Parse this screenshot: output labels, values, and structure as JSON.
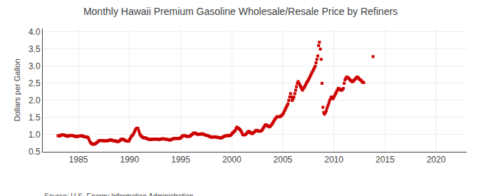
{
  "chart_data": {
    "type": "scatter",
    "title": "Monthly Hawaii Premium Gasoline Wholesale/Resale Price by Refiners",
    "y_label": "Dollars per Gallon",
    "annotations": [
      "Source: U.S. Energy Information Administration"
    ],
    "color": "#cc0000",
    "marker": "square",
    "grid": true,
    "xlim": [
      1981.5,
      2023
    ],
    "ylim": [
      0.5,
      4.1
    ],
    "xticks": [
      1985,
      1990,
      1995,
      2000,
      2005,
      2010,
      2015,
      2020
    ],
    "yticks": [
      0.5,
      {
        "value": 1.0,
        "label": "1.0"
      },
      1.5,
      {
        "value": 2.0,
        "label": "2.0"
      },
      2.5,
      {
        "value": 3.0,
        "label": "3.0"
      },
      3.5,
      {
        "value": 4.0,
        "label": "4.0"
      }
    ],
    "x": [
      1983.0,
      1983.08,
      1983.17,
      1983.25,
      1983.33,
      1983.42,
      1983.5,
      1983.58,
      1983.67,
      1983.75,
      1983.83,
      1983.92,
      1984.0,
      1984.08,
      1984.17,
      1984.25,
      1984.33,
      1984.42,
      1984.5,
      1984.58,
      1984.67,
      1984.75,
      1984.83,
      1984.92,
      1985.0,
      1985.08,
      1985.17,
      1985.25,
      1985.33,
      1985.42,
      1985.5,
      1985.58,
      1985.67,
      1985.75,
      1985.83,
      1985.92,
      1986.0,
      1986.08,
      1986.17,
      1986.25,
      1986.33,
      1986.42,
      1986.5,
      1986.58,
      1986.67,
      1986.75,
      1986.83,
      1986.92,
      1987.0,
      1987.08,
      1987.17,
      1987.25,
      1987.33,
      1987.42,
      1987.5,
      1987.58,
      1987.67,
      1987.75,
      1987.83,
      1987.92,
      1988.0,
      1988.08,
      1988.17,
      1988.25,
      1988.33,
      1988.42,
      1988.5,
      1988.58,
      1988.67,
      1988.75,
      1988.83,
      1988.92,
      1989.0,
      1989.08,
      1989.17,
      1989.25,
      1989.33,
      1989.42,
      1989.5,
      1989.58,
      1989.67,
      1989.75,
      1989.83,
      1989.92,
      1990.0,
      1990.08,
      1990.17,
      1990.25,
      1990.33,
      1990.42,
      1990.5,
      1990.58,
      1990.67,
      1990.75,
      1990.83,
      1990.92,
      1991.0,
      1991.08,
      1991.17,
      1991.25,
      1991.33,
      1991.42,
      1991.5,
      1991.58,
      1991.67,
      1991.75,
      1991.83,
      1991.92,
      1992.0,
      1992.08,
      1992.17,
      1992.25,
      1992.33,
      1992.42,
      1992.5,
      1992.58,
      1992.67,
      1992.75,
      1992.83,
      1992.92,
      1993.0,
      1993.08,
      1993.17,
      1993.25,
      1993.33,
      1993.42,
      1993.5,
      1993.58,
      1993.67,
      1993.75,
      1993.83,
      1993.92,
      1994.0,
      1994.08,
      1994.17,
      1994.25,
      1994.33,
      1994.42,
      1994.5,
      1994.58,
      1994.67,
      1994.75,
      1994.83,
      1994.92,
      1995.0,
      1995.08,
      1995.17,
      1995.25,
      1995.33,
      1995.42,
      1995.5,
      1995.58,
      1995.67,
      1995.75,
      1995.83,
      1995.92,
      1996.0,
      1996.08,
      1996.17,
      1996.25,
      1996.33,
      1996.42,
      1996.5,
      1996.58,
      1996.67,
      1996.75,
      1996.83,
      1996.92,
      1997.0,
      1997.08,
      1997.17,
      1997.25,
      1997.33,
      1997.42,
      1997.5,
      1997.58,
      1997.67,
      1997.75,
      1997.83,
      1997.92,
      1998.0,
      1998.08,
      1998.17,
      1998.25,
      1998.33,
      1998.42,
      1998.5,
      1998.58,
      1998.67,
      1998.75,
      1998.83,
      1998.92,
      1999.0,
      1999.08,
      1999.17,
      1999.25,
      1999.33,
      1999.42,
      1999.5,
      1999.58,
      1999.67,
      1999.75,
      1999.83,
      1999.92,
      2000.0,
      2000.08,
      2000.17,
      2000.25,
      2000.33,
      2000.42,
      2000.5,
      2000.58,
      2000.67,
      2000.75,
      2000.83,
      2000.92,
      2001.0,
      2001.08,
      2001.17,
      2001.25,
      2001.33,
      2001.42,
      2001.5,
      2001.58,
      2001.67,
      2001.75,
      2001.83,
      2001.92,
      2002.0,
      2002.08,
      2002.17,
      2002.25,
      2002.33,
      2002.42,
      2002.5,
      2002.58,
      2002.67,
      2002.75,
      2002.83,
      2002.92,
      2003.0,
      2003.08,
      2003.17,
      2003.25,
      2003.33,
      2003.42,
      2003.5,
      2003.58,
      2003.67,
      2003.75,
      2003.83,
      2003.92,
      2004.0,
      2004.08,
      2004.17,
      2004.25,
      2004.33,
      2004.42,
      2004.5,
      2004.58,
      2004.67,
      2004.75,
      2004.83,
      2004.92,
      2005.0,
      2005.08,
      2005.17,
      2005.25,
      2005.33,
      2005.42,
      2005.5,
      2005.58,
      2005.67,
      2005.75,
      2005.83,
      2005.92,
      2006.0,
      2006.08,
      2006.17,
      2006.25,
      2006.33,
      2006.42,
      2006.5,
      2006.58,
      2006.67,
      2006.75,
      2006.83,
      2006.92,
      2007.0,
      2007.08,
      2007.17,
      2007.25,
      2007.33,
      2007.42,
      2007.5,
      2007.58,
      2007.67,
      2007.75,
      2007.83,
      2007.92,
      2008.0,
      2008.08,
      2008.17,
      2008.25,
      2008.33,
      2008.42,
      2008.5,
      2008.58,
      2008.67,
      2008.75,
      2008.83,
      2008.92,
      2009.0,
      2009.08,
      2009.17,
      2009.25,
      2009.33,
      2009.42,
      2009.5,
      2009.58,
      2009.67,
      2009.75,
      2009.83,
      2009.92,
      2010.0,
      2010.08,
      2010.17,
      2010.25,
      2010.33,
      2010.42,
      2010.5,
      2010.58,
      2010.67,
      2010.75,
      2010.83,
      2010.92,
      2011.0,
      2011.08,
      2011.17,
      2011.25,
      2011.33,
      2011.42,
      2011.5,
      2011.58,
      2011.67,
      2011.75,
      2011.83,
      2011.92,
      2012.0,
      2012.08,
      2012.17,
      2012.25,
      2012.33,
      2012.42,
      2012.5,
      2012.58,
      2012.67,
      2012.75,
      2012.83,
      2012.92,
      2013.83
    ],
    "values": [
      0.97,
      0.97,
      0.96,
      0.98,
      0.99,
      1.0,
      1.0,
      0.99,
      0.98,
      0.97,
      0.96,
      0.95,
      0.97,
      0.97,
      0.97,
      0.98,
      0.98,
      0.97,
      0.97,
      0.96,
      0.95,
      0.95,
      0.94,
      0.95,
      0.96,
      0.96,
      0.96,
      0.97,
      0.97,
      0.96,
      0.95,
      0.94,
      0.94,
      0.93,
      0.93,
      0.92,
      0.88,
      0.82,
      0.77,
      0.75,
      0.73,
      0.72,
      0.72,
      0.73,
      0.74,
      0.76,
      0.78,
      0.8,
      0.82,
      0.83,
      0.83,
      0.83,
      0.83,
      0.82,
      0.82,
      0.82,
      0.82,
      0.82,
      0.82,
      0.83,
      0.84,
      0.84,
      0.85,
      0.84,
      0.83,
      0.82,
      0.82,
      0.82,
      0.81,
      0.8,
      0.8,
      0.8,
      0.82,
      0.84,
      0.86,
      0.87,
      0.87,
      0.86,
      0.84,
      0.83,
      0.82,
      0.81,
      0.81,
      0.81,
      0.86,
      0.9,
      0.95,
      0.97,
      1.0,
      1.05,
      1.1,
      1.15,
      1.18,
      1.19,
      1.18,
      1.1,
      1.02,
      0.98,
      0.95,
      0.93,
      0.91,
      0.91,
      0.91,
      0.9,
      0.89,
      0.88,
      0.87,
      0.86,
      0.86,
      0.86,
      0.86,
      0.87,
      0.87,
      0.87,
      0.87,
      0.87,
      0.87,
      0.87,
      0.86,
      0.86,
      0.87,
      0.87,
      0.88,
      0.88,
      0.88,
      0.87,
      0.87,
      0.87,
      0.86,
      0.86,
      0.85,
      0.84,
      0.85,
      0.86,
      0.87,
      0.88,
      0.89,
      0.89,
      0.89,
      0.89,
      0.89,
      0.89,
      0.89,
      0.89,
      0.91,
      0.93,
      0.96,
      0.97,
      0.98,
      0.97,
      0.96,
      0.95,
      0.95,
      0.95,
      0.95,
      0.96,
      0.98,
      1.0,
      1.02,
      1.04,
      1.05,
      1.05,
      1.03,
      1.02,
      1.01,
      1.01,
      1.02,
      1.01,
      1.02,
      1.03,
      1.02,
      1.01,
      1.0,
      0.99,
      0.98,
      0.98,
      0.97,
      0.96,
      0.95,
      0.93,
      0.93,
      0.93,
      0.93,
      0.93,
      0.94,
      0.93,
      0.93,
      0.92,
      0.92,
      0.92,
      0.91,
      0.9,
      0.91,
      0.92,
      0.94,
      0.95,
      0.96,
      0.97,
      0.98,
      0.97,
      0.97,
      0.97,
      0.98,
      0.99,
      1.02,
      1.05,
      1.07,
      1.1,
      1.12,
      1.18,
      1.22,
      1.2,
      1.18,
      1.16,
      1.14,
      1.1,
      1.05,
      1.0,
      0.99,
      1.0,
      1.0,
      1.03,
      1.05,
      1.08,
      1.1,
      1.08,
      1.06,
      1.04,
      1.03,
      1.05,
      1.07,
      1.09,
      1.11,
      1.13,
      1.12,
      1.11,
      1.1,
      1.1,
      1.11,
      1.12,
      1.15,
      1.19,
      1.23,
      1.27,
      1.29,
      1.28,
      1.26,
      1.24,
      1.23,
      1.24,
      1.27,
      1.3,
      1.33,
      1.38,
      1.42,
      1.46,
      1.49,
      1.52,
      1.53,
      1.52,
      1.52,
      1.53,
      1.55,
      1.57,
      1.6,
      1.64,
      1.7,
      1.75,
      1.8,
      1.85,
      1.9,
      2.0,
      2.1,
      2.2,
      2.1,
      2.0,
      2.05,
      2.1,
      2.2,
      2.3,
      2.4,
      2.5,
      2.55,
      2.5,
      2.45,
      2.4,
      2.35,
      2.3,
      2.35,
      2.38,
      2.42,
      2.47,
      2.52,
      2.56,
      2.6,
      2.65,
      2.7,
      2.75,
      2.8,
      2.85,
      2.9,
      2.95,
      3.0,
      3.1,
      3.2,
      3.3,
      3.6,
      3.7,
      3.5,
      3.2,
      2.5,
      1.8,
      1.65,
      1.6,
      1.65,
      1.7,
      1.78,
      1.85,
      1.92,
      2.0,
      2.05,
      2.1,
      2.1,
      2.05,
      2.1,
      2.15,
      2.2,
      2.25,
      2.3,
      2.35,
      2.35,
      2.32,
      2.3,
      2.3,
      2.32,
      2.35,
      2.5,
      2.6,
      2.65,
      2.68,
      2.68,
      2.65,
      2.63,
      2.6,
      2.58,
      2.55,
      2.55,
      2.57,
      2.6,
      2.62,
      2.65,
      2.68,
      2.68,
      2.65,
      2.62,
      2.6,
      2.58,
      2.55,
      2.53,
      2.52,
      3.28
    ]
  }
}
